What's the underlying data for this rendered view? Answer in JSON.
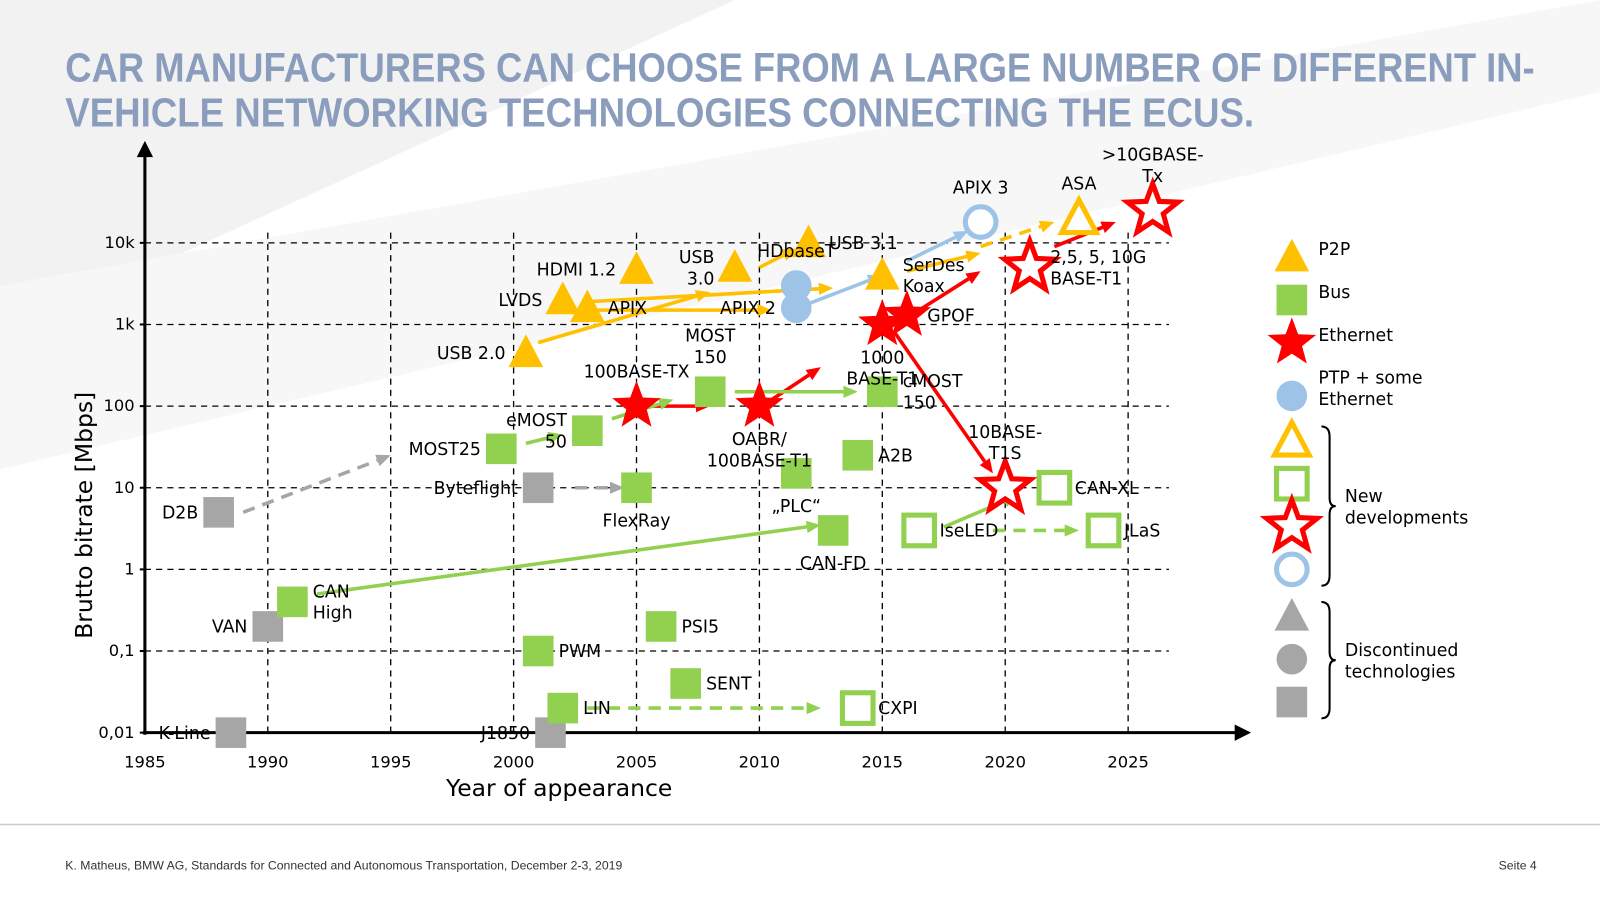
{
  "title": [
    "CAR MANUFACTURERS CAN CHOOSE FROM A LARGE NUMBER OF DIFFERENT IN-",
    "VEHICLE NETWORKING TECHNOLOGIES CONNECTING THE ECUS."
  ],
  "footer": "K. Matheus, BMW AG, Standards for Connected and Autonomous Transportation, December 2-3, 2019",
  "page": "Seite 4",
  "chart_data": {
    "type": "scatter",
    "xlabel": "Year of appearance",
    "ylabel": "Brutto bitrate [Mbps]",
    "xlim": [
      1985,
      2030
    ],
    "ylim": [
      0.01,
      100000
    ],
    "log_y": true,
    "grid": true,
    "xticks": [
      1985,
      1990,
      1995,
      2000,
      2005,
      2010,
      2015,
      2020,
      2025
    ],
    "yticks": [
      {
        "value": 0.01,
        "label": "0,01"
      },
      {
        "value": 0.1,
        "label": "0,1"
      },
      1,
      10,
      100,
      {
        "value": 1000,
        "label": "1k"
      },
      {
        "value": 10000,
        "label": "10k"
      }
    ],
    "colors": {
      "p2p": "#ffc000",
      "bus": "#92d050",
      "ethernet": "#ff0000",
      "ptp": "#9dc3e6",
      "discontinued": "#a6a6a6"
    },
    "points": [
      {
        "label": [
          "K-Line"
        ],
        "x": 1988.5,
        "y": 0.01,
        "shape": "square",
        "group": "discontinued",
        "open": false,
        "pos": "left"
      },
      {
        "label": [
          "J1850"
        ],
        "x": 2001.5,
        "y": 0.01,
        "shape": "square",
        "group": "discontinued",
        "open": false,
        "pos": "left"
      },
      {
        "label": [
          "VAN"
        ],
        "x": 1990,
        "y": 0.2,
        "shape": "square",
        "group": "discontinued",
        "open": false,
        "pos": "left"
      },
      {
        "label": [
          "D2B"
        ],
        "x": 1988,
        "y": 5,
        "shape": "square",
        "group": "discontinued",
        "open": false,
        "pos": "left"
      },
      {
        "label": [
          "Byteflight"
        ],
        "x": 2001,
        "y": 10,
        "shape": "square",
        "group": "discontinued",
        "open": false,
        "pos": "left"
      },
      {
        "label": [
          "CAN",
          "High"
        ],
        "x": 1991,
        "y": 0.4,
        "shape": "square",
        "group": "bus",
        "open": false,
        "pos": "right"
      },
      {
        "label": [
          "MOST25"
        ],
        "x": 1999.5,
        "y": 30,
        "shape": "square",
        "group": "bus",
        "open": false,
        "pos": "left"
      },
      {
        "label": [
          "eMOST",
          "50"
        ],
        "x": 2003,
        "y": 50,
        "shape": "square",
        "group": "bus",
        "open": false,
        "pos": "left"
      },
      {
        "label": [
          "FlexRay"
        ],
        "x": 2005,
        "y": 10,
        "shape": "square",
        "group": "bus",
        "open": false,
        "pos": "bottom"
      },
      {
        "label": [
          "MOST",
          "150"
        ],
        "x": 2008,
        "y": 150,
        "shape": "square",
        "group": "bus",
        "open": false,
        "pos": "top"
      },
      {
        "label": [
          "cMOST",
          "150"
        ],
        "x": 2015,
        "y": 150,
        "shape": "square",
        "group": "bus",
        "open": false,
        "pos": "right"
      },
      {
        "label": [
          "„PLC“"
        ],
        "x": 2011.5,
        "y": 15,
        "shape": "square",
        "group": "bus",
        "open": false,
        "pos": "bottom"
      },
      {
        "label": [
          "A2B"
        ],
        "x": 2014,
        "y": 25,
        "shape": "square",
        "group": "bus",
        "open": false,
        "pos": "right"
      },
      {
        "label": [
          "CAN-FD"
        ],
        "x": 2013,
        "y": 3,
        "shape": "square",
        "group": "bus",
        "open": false,
        "pos": "bottom"
      },
      {
        "label": [
          "PWM"
        ],
        "x": 2001,
        "y": 0.1,
        "shape": "square",
        "group": "bus",
        "open": false,
        "pos": "right"
      },
      {
        "label": [
          "PSI5"
        ],
        "x": 2006,
        "y": 0.2,
        "shape": "square",
        "group": "bus",
        "open": false,
        "pos": "right"
      },
      {
        "label": [
          "SENT"
        ],
        "x": 2007,
        "y": 0.04,
        "shape": "square",
        "group": "bus",
        "open": false,
        "pos": "right"
      },
      {
        "label": [
          "LIN"
        ],
        "x": 2002,
        "y": 0.02,
        "shape": "square",
        "group": "bus",
        "open": false,
        "pos": "right"
      },
      {
        "label": [
          "CXPI"
        ],
        "x": 2014,
        "y": 0.02,
        "shape": "square",
        "group": "bus",
        "open": true,
        "pos": "right"
      },
      {
        "label": [
          "IseLED"
        ],
        "x": 2016.5,
        "y": 3,
        "shape": "square",
        "group": "bus",
        "open": true,
        "pos": "right"
      },
      {
        "label": [
          "CAN-XL"
        ],
        "x": 2022,
        "y": 10,
        "shape": "square",
        "group": "bus",
        "open": true,
        "pos": "right"
      },
      {
        "label": [
          "JLaS"
        ],
        "x": 2024,
        "y": 3,
        "shape": "square",
        "group": "bus",
        "open": true,
        "pos": "right"
      },
      {
        "label": [
          "USB 2.0"
        ],
        "x": 2000.5,
        "y": 450,
        "shape": "triangle",
        "group": "p2p",
        "open": false,
        "pos": "left"
      },
      {
        "label": [
          "LVDS"
        ],
        "x": 2002,
        "y": 2000,
        "shape": "triangle",
        "group": "p2p",
        "open": false,
        "pos": "left"
      },
      {
        "label": [
          "APIX"
        ],
        "x": 2003,
        "y": 1600,
        "shape": "triangle",
        "group": "p2p",
        "open": false,
        "pos": "right"
      },
      {
        "label": [
          "HDMI 1.2"
        ],
        "x": 2005,
        "y": 4700,
        "shape": "triangle",
        "group": "p2p",
        "open": false,
        "pos": "left"
      },
      {
        "label": [
          "USB",
          "3.0"
        ],
        "x": 2009,
        "y": 5000,
        "shape": "triangle",
        "group": "p2p",
        "open": false,
        "pos": "left"
      },
      {
        "label": [
          "USB 3.1"
        ],
        "x": 2012,
        "y": 10000,
        "shape": "triangle",
        "group": "p2p",
        "open": false,
        "pos": "right"
      },
      {
        "label": [
          "SerDes",
          "Koax"
        ],
        "x": 2015,
        "y": 4000,
        "shape": "triangle",
        "group": "p2p",
        "open": false,
        "pos": "right"
      },
      {
        "label": [
          "ASA"
        ],
        "x": 2023,
        "y": 20000,
        "shape": "triangle",
        "group": "p2p",
        "open": true,
        "pos": "top"
      },
      {
        "label": [
          "HDbaseT"
        ],
        "x": 2011.5,
        "y": 3000,
        "shape": "circle",
        "group": "ptp",
        "open": false,
        "pos": "top"
      },
      {
        "label": [
          "APIX 2"
        ],
        "x": 2011.5,
        "y": 1600,
        "shape": "circle",
        "group": "ptp",
        "open": false,
        "pos": "left"
      },
      {
        "label": [
          "APIX 3"
        ],
        "x": 2019,
        "y": 18000,
        "shape": "circle",
        "group": "ptp",
        "open": true,
        "pos": "top"
      },
      {
        "label": [
          "100BASE-TX"
        ],
        "x": 2005,
        "y": 100,
        "shape": "star",
        "group": "ethernet",
        "open": false,
        "pos": "top"
      },
      {
        "label": [
          "OABR/",
          "100BASE-T1"
        ],
        "x": 2010,
        "y": 100,
        "shape": "star",
        "group": "ethernet",
        "open": false,
        "pos": "bottom"
      },
      {
        "label": [
          "1000",
          "BASE-T1"
        ],
        "x": 2015,
        "y": 1000,
        "shape": "star",
        "group": "ethernet",
        "open": false,
        "pos": "bottom"
      },
      {
        "label": [
          "GPOF"
        ],
        "x": 2016,
        "y": 1300,
        "shape": "star",
        "group": "ethernet",
        "open": false,
        "pos": "right"
      },
      {
        "label": [
          "10BASE-",
          "T1S"
        ],
        "x": 2020,
        "y": 10,
        "shape": "star",
        "group": "ethernet",
        "open": true,
        "pos": "top"
      },
      {
        "label": [
          "2,5, 5, 10G",
          "BASE-T1"
        ],
        "x": 2021,
        "y": 5000,
        "shape": "star",
        "group": "ethernet",
        "open": true,
        "pos": "right"
      },
      {
        "label": [
          ">10GBASE-",
          "Tx"
        ],
        "x": 2026,
        "y": 25000,
        "shape": "star",
        "group": "ethernet",
        "open": true,
        "pos": "top"
      }
    ],
    "arrows": [
      {
        "x": [
          2001,
          2008
        ],
        "y": [
          600,
          2500
        ],
        "group": "p2p",
        "dashed": false
      },
      {
        "x": [
          2003,
          2013
        ],
        "y": [
          1900,
          2800
        ],
        "group": "p2p",
        "dashed": false
      },
      {
        "x": [
          2003,
          2010.5
        ],
        "y": [
          1500,
          1500
        ],
        "group": "p2p",
        "dashed": false
      },
      {
        "x": [
          2010,
          2011.5
        ],
        "y": [
          5000,
          8500
        ],
        "group": "p2p",
        "dashed": false
      },
      {
        "x": [
          2016,
          2019
        ],
        "y": [
          4500,
          7500
        ],
        "group": "p2p",
        "dashed": false
      },
      {
        "x": [
          2019,
          2022
        ],
        "y": [
          9000,
          18000
        ],
        "group": "p2p",
        "dashed": true
      },
      {
        "x": [
          2012,
          2015
        ],
        "y": [
          1800,
          4000
        ],
        "group": "ptp",
        "dashed": false
      },
      {
        "x": [
          2016,
          2018.5
        ],
        "y": [
          6000,
          14000
        ],
        "group": "ptp",
        "dashed": false
      },
      {
        "x": [
          2005.5,
          2008
        ],
        "y": [
          100,
          100
        ],
        "group": "ethernet",
        "dashed": false
      },
      {
        "x": [
          2010.5,
          2012.5
        ],
        "y": [
          120,
          300
        ],
        "group": "ethernet",
        "dashed": false
      },
      {
        "x": [
          2016.5,
          2019
        ],
        "y": [
          1500,
          4500
        ],
        "group": "ethernet",
        "dashed": false
      },
      {
        "x": [
          2015.5,
          2019.5
        ],
        "y": [
          800,
          15
        ],
        "group": "ethernet",
        "dashed": false
      },
      {
        "x": [
          2022,
          2024.5
        ],
        "y": [
          9000,
          18000
        ],
        "group": "ethernet",
        "dashed": false
      },
      {
        "x": [
          1992,
          2012.5
        ],
        "y": [
          0.5,
          3.5
        ],
        "group": "bus",
        "dashed": false
      },
      {
        "x": [
          2000.5,
          2002
        ],
        "y": [
          35,
          45
        ],
        "group": "bus",
        "dashed": false
      },
      {
        "x": [
          2004,
          2006.5
        ],
        "y": [
          70,
          120
        ],
        "group": "bus",
        "dashed": false
      },
      {
        "x": [
          2009,
          2014
        ],
        "y": [
          150,
          150
        ],
        "group": "bus",
        "dashed": false
      },
      {
        "x": [
          2017.5,
          2020.5
        ],
        "y": [
          3.3,
          8
        ],
        "group": "bus",
        "dashed": false
      },
      {
        "x": [
          2019.5,
          2023
        ],
        "y": [
          3,
          3
        ],
        "group": "bus",
        "dashed": true
      },
      {
        "x": [
          2003,
          2012.5
        ],
        "y": [
          0.02,
          0.02
        ],
        "group": "bus",
        "dashed": true
      },
      {
        "x": [
          1989,
          1995
        ],
        "y": [
          5,
          25
        ],
        "group": "discontinued",
        "dashed": true
      },
      {
        "x": [
          2002.5,
          2004.5
        ],
        "y": [
          10,
          10
        ],
        "group": "discontinued",
        "dashed": true
      }
    ],
    "legend": {
      "items": [
        {
          "label": [
            "P2P"
          ],
          "shape": "triangle",
          "group": "p2p"
        },
        {
          "label": [
            "Bus"
          ],
          "shape": "square",
          "group": "bus"
        },
        {
          "label": [
            "Ethernet"
          ],
          "shape": "star",
          "group": "ethernet"
        },
        {
          "label": [
            "PTP + some",
            "Ethernet"
          ],
          "shape": "circle",
          "group": "ptp"
        }
      ],
      "groups": [
        {
          "label": [
            "New",
            "developments"
          ],
          "shapes": [
            "triangle",
            "square",
            "star",
            "circle"
          ],
          "groups": [
            "p2p",
            "bus",
            "ethernet",
            "ptp"
          ],
          "open": true
        },
        {
          "label": [
            "Discontinued",
            "technologies"
          ],
          "shapes": [
            "triangle",
            "circle",
            "square"
          ],
          "groups": [
            "discontinued",
            "discontinued",
            "discontinued"
          ],
          "open": false
        }
      ]
    }
  }
}
